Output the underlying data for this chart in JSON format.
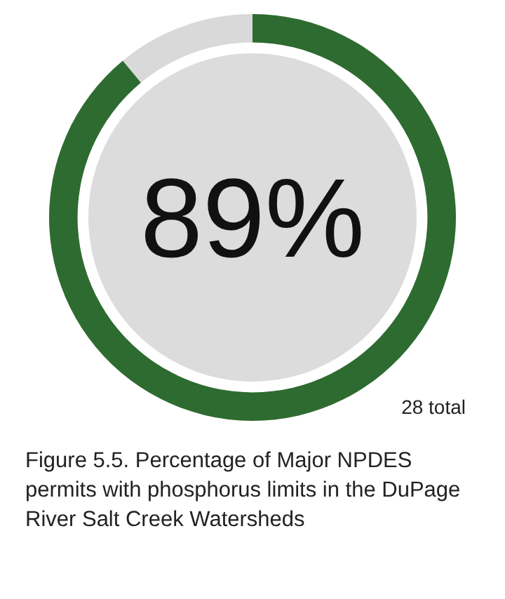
{
  "chart_data": {
    "type": "donut",
    "title": "Figure 5.5. Percentage of Major NPDES permits with phosphorus limits in the DuPage River Salt Creek Watersheds",
    "categories": [
      null,
      null
    ],
    "values": [
      89,
      11
    ],
    "colors": [
      "#2e6b30",
      "#d9d9d9"
    ],
    "annotations": [
      "89%",
      "28 total"
    ]
  }
}
